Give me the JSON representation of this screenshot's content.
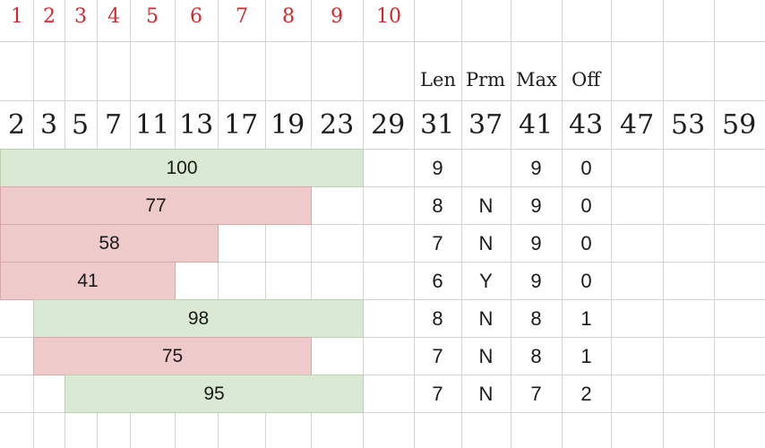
{
  "index_row": [
    "1",
    "2",
    "3",
    "4",
    "5",
    "6",
    "7",
    "8",
    "9",
    "10"
  ],
  "column_headers": {
    "len": "Len",
    "prm": "Prm",
    "max": "Max",
    "off": "Off"
  },
  "primes": [
    "2",
    "3",
    "5",
    "7",
    "11",
    "13",
    "17",
    "19",
    "23",
    "29",
    "31",
    "37",
    "41",
    "43",
    "47",
    "53",
    "59"
  ],
  "rows": [
    {
      "sum": "100",
      "color": "green",
      "len": "9",
      "prm": "",
      "max": "9",
      "off": "0"
    },
    {
      "sum": "77",
      "color": "red",
      "len": "8",
      "prm": "N",
      "max": "9",
      "off": "0"
    },
    {
      "sum": "58",
      "color": "red",
      "len": "7",
      "prm": "N",
      "max": "9",
      "off": "0"
    },
    {
      "sum": "41",
      "color": "red",
      "len": "6",
      "prm": "Y",
      "max": "9",
      "off": "0"
    },
    {
      "sum": "98",
      "color": "green",
      "len": "8",
      "prm": "N",
      "max": "8",
      "off": "1"
    },
    {
      "sum": "75",
      "color": "red",
      "len": "7",
      "prm": "N",
      "max": "8",
      "off": "1"
    },
    {
      "sum": "95",
      "color": "green",
      "len": "7",
      "prm": "N",
      "max": "7",
      "off": "2"
    }
  ],
  "colors": {
    "green": "#d9e9d3",
    "red": "#efcaca",
    "index_text": "#d9262c",
    "grid": "#d4d4d4"
  }
}
